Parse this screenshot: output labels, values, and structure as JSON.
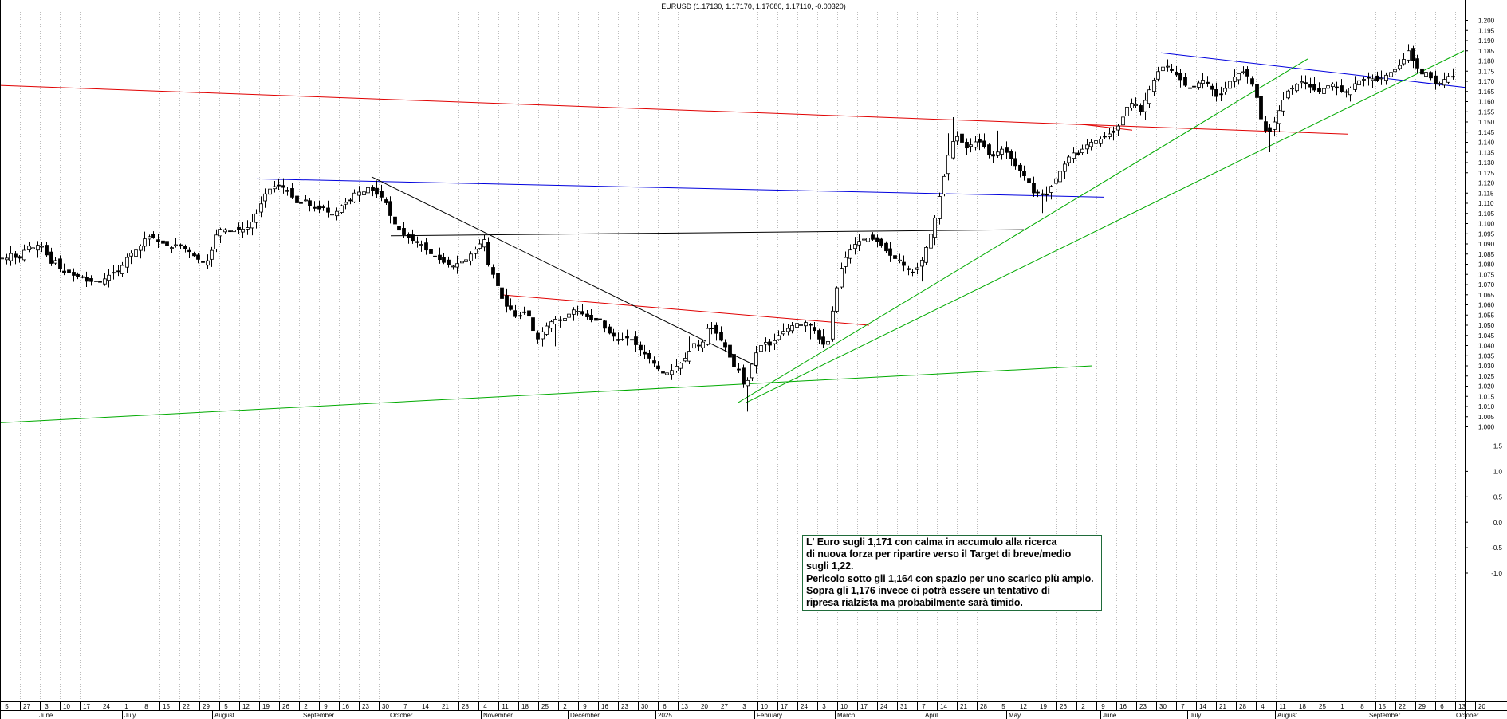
{
  "chart_data": {
    "type": "candlestick",
    "title": "EURUSD (1.17130, 1.17170, 1.17080, 1.17110, -0.00320)",
    "symbol": "EURUSD",
    "last_quote": {
      "open": 1.1713,
      "high": 1.1717,
      "low": 1.1708,
      "close": 1.1711,
      "change": -0.0032
    },
    "price_axis": {
      "min": 1.0,
      "max": 1.2,
      "step": 0.005,
      "tick_labels": [
        "1.000",
        "1.005",
        "1.010",
        "1.015",
        "1.020",
        "1.025",
        "1.030",
        "1.035",
        "1.040",
        "1.045",
        "1.050",
        "1.055",
        "1.060",
        "1.065",
        "1.070",
        "1.075",
        "1.080",
        "1.085",
        "1.090",
        "1.095",
        "1.100",
        "1.105",
        "1.110",
        "1.115",
        "1.120",
        "1.125",
        "1.130",
        "1.135",
        "1.140",
        "1.145",
        "1.150",
        "1.155",
        "1.160",
        "1.165",
        "1.170",
        "1.175",
        "1.180",
        "1.185",
        "1.190",
        "1.195",
        "1.200"
      ]
    },
    "indicator_axis": {
      "min": -1.0,
      "max": 1.5,
      "tick_labels": [
        "1.5",
        "1.0",
        "0.5",
        "0.0",
        "-0.5",
        "-1.0"
      ],
      "tick_values": [
        1.5,
        1.0,
        0.5,
        0.0,
        -0.5,
        -1.0
      ]
    },
    "x_axis": {
      "day_labels": [
        "5",
        "27",
        "3",
        "10",
        "17",
        "24",
        "1",
        "8",
        "15",
        "22",
        "29",
        "5",
        "12",
        "19",
        "26",
        "2",
        "9",
        "16",
        "23",
        "30",
        "7",
        "14",
        "21",
        "28",
        "4",
        "11",
        "18",
        "25",
        "2",
        "9",
        "16",
        "23",
        "30",
        "6",
        "13",
        "20",
        "27",
        "3",
        "10",
        "17",
        "24",
        "3",
        "10",
        "17",
        "24",
        "31",
        "7",
        "14",
        "21",
        "28",
        "5",
        "12",
        "19",
        "26",
        "2",
        "9",
        "16",
        "23",
        "30",
        "7",
        "14",
        "21",
        "28",
        "4",
        "11",
        "18",
        "25",
        "1",
        "8",
        "15",
        "22",
        "29",
        "6",
        "13",
        "20"
      ],
      "month_labels": [
        "June",
        "July",
        "August",
        "September",
        "October",
        "November",
        "December",
        "2025",
        "February",
        "March",
        "April",
        "May",
        "June",
        "July",
        "August",
        "September",
        "October"
      ],
      "month_ticks": [
        46,
        153,
        266,
        377,
        486,
        603,
        712,
        822,
        946,
        1047,
        1157,
        1262,
        1380,
        1489,
        1599,
        1714,
        1823
      ],
      "bars_per_label": 5
    },
    "ohlc_anchors": [
      [
        0,
        1.083
      ],
      [
        8,
        1.083
      ],
      [
        15,
        1.086
      ],
      [
        22,
        1.081
      ],
      [
        28,
        1.086
      ],
      [
        35,
        1.089
      ],
      [
        42,
        1.088
      ],
      [
        49,
        1.09
      ],
      [
        55,
        1.088
      ],
      [
        62,
        1.08
      ],
      [
        70,
        1.082
      ],
      [
        77,
        1.076
      ],
      [
        85,
        1.076
      ],
      [
        94,
        1.074
      ],
      [
        102,
        1.074
      ],
      [
        110,
        1.071
      ],
      [
        118,
        1.072
      ],
      [
        126,
        1.071
      ],
      [
        134,
        1.074
      ],
      [
        142,
        1.076
      ],
      [
        150,
        1.077
      ],
      [
        158,
        1.083
      ],
      [
        166,
        1.086
      ],
      [
        174,
        1.088
      ],
      [
        182,
        1.093
      ],
      [
        190,
        1.094
      ],
      [
        198,
        1.091
      ],
      [
        206,
        1.09
      ],
      [
        214,
        1.088
      ],
      [
        222,
        1.09
      ],
      [
        230,
        1.088
      ],
      [
        238,
        1.086
      ],
      [
        246,
        1.083
      ],
      [
        254,
        1.081
      ],
      [
        262,
        1.082
      ],
      [
        270,
        1.094
      ],
      [
        278,
        1.098
      ],
      [
        286,
        1.096
      ],
      [
        294,
        1.097
      ],
      [
        302,
        1.097
      ],
      [
        310,
        1.098
      ],
      [
        318,
        1.102
      ],
      [
        326,
        1.109
      ],
      [
        334,
        1.116
      ],
      [
        342,
        1.118
      ],
      [
        350,
        1.119
      ],
      [
        358,
        1.117
      ],
      [
        366,
        1.113
      ],
      [
        374,
        1.109
      ],
      [
        382,
        1.112
      ],
      [
        390,
        1.108
      ],
      [
        398,
        1.107
      ],
      [
        406,
        1.108
      ],
      [
        414,
        1.104
      ],
      [
        422,
        1.106
      ],
      [
        430,
        1.11
      ],
      [
        438,
        1.111
      ],
      [
        446,
        1.116
      ],
      [
        454,
        1.115
      ],
      [
        462,
        1.118
      ],
      [
        470,
        1.115
      ],
      [
        478,
        1.113
      ],
      [
        484,
        1.11
      ],
      [
        490,
        1.103
      ],
      [
        496,
        1.099
      ],
      [
        504,
        1.095
      ],
      [
        512,
        1.093
      ],
      [
        520,
        1.091
      ],
      [
        528,
        1.09
      ],
      [
        536,
        1.086
      ],
      [
        544,
        1.084
      ],
      [
        552,
        1.082
      ],
      [
        560,
        1.08
      ],
      [
        568,
        1.079
      ],
      [
        576,
        1.081
      ],
      [
        584,
        1.082
      ],
      [
        592,
        1.086
      ],
      [
        600,
        1.089
      ],
      [
        606,
        1.094
      ],
      [
        612,
        1.08
      ],
      [
        618,
        1.075
      ],
      [
        624,
        1.069
      ],
      [
        632,
        1.06
      ],
      [
        640,
        1.058
      ],
      [
        648,
        1.053
      ],
      [
        656,
        1.057
      ],
      [
        664,
        1.054
      ],
      [
        672,
        1.042
      ],
      [
        680,
        1.047
      ],
      [
        688,
        1.051
      ],
      [
        696,
        1.053
      ],
      [
        704,
        1.052
      ],
      [
        712,
        1.055
      ],
      [
        720,
        1.058
      ],
      [
        728,
        1.056
      ],
      [
        736,
        1.054
      ],
      [
        744,
        1.052
      ],
      [
        752,
        1.053
      ],
      [
        760,
        1.047
      ],
      [
        768,
        1.045
      ],
      [
        776,
        1.042
      ],
      [
        784,
        1.044
      ],
      [
        792,
        1.043
      ],
      [
        800,
        1.039
      ],
      [
        808,
        1.036
      ],
      [
        816,
        1.033
      ],
      [
        824,
        1.029
      ],
      [
        832,
        1.026
      ],
      [
        840,
        1.027
      ],
      [
        848,
        1.03
      ],
      [
        856,
        1.032
      ],
      [
        864,
        1.037
      ],
      [
        870,
        1.041
      ],
      [
        876,
        1.04
      ],
      [
        882,
        1.042
      ],
      [
        888,
        1.05
      ],
      [
        894,
        1.048
      ],
      [
        900,
        1.045
      ],
      [
        906,
        1.041
      ],
      [
        912,
        1.038
      ],
      [
        918,
        1.03
      ],
      [
        926,
        1.028
      ],
      [
        934,
        1.018
      ],
      [
        942,
        1.03
      ],
      [
        950,
        1.038
      ],
      [
        958,
        1.042
      ],
      [
        966,
        1.04
      ],
      [
        974,
        1.044
      ],
      [
        982,
        1.047
      ],
      [
        990,
        1.049
      ],
      [
        998,
        1.051
      ],
      [
        1006,
        1.05
      ],
      [
        1012,
        1.052
      ],
      [
        1018,
        1.049
      ],
      [
        1024,
        1.046
      ],
      [
        1030,
        1.04
      ],
      [
        1038,
        1.042
      ],
      [
        1044,
        1.058
      ],
      [
        1050,
        1.07
      ],
      [
        1056,
        1.08
      ],
      [
        1064,
        1.086
      ],
      [
        1072,
        1.09
      ],
      [
        1080,
        1.092
      ],
      [
        1088,
        1.093
      ],
      [
        1096,
        1.092
      ],
      [
        1104,
        1.09
      ],
      [
        1112,
        1.086
      ],
      [
        1120,
        1.083
      ],
      [
        1128,
        1.082
      ],
      [
        1136,
        1.078
      ],
      [
        1144,
        1.076
      ],
      [
        1152,
        1.079
      ],
      [
        1158,
        1.084
      ],
      [
        1164,
        1.092
      ],
      [
        1170,
        1.098
      ],
      [
        1176,
        1.11
      ],
      [
        1182,
        1.12
      ],
      [
        1188,
        1.132
      ],
      [
        1194,
        1.14
      ],
      [
        1200,
        1.143
      ],
      [
        1206,
        1.14
      ],
      [
        1212,
        1.137
      ],
      [
        1218,
        1.139
      ],
      [
        1226,
        1.141
      ],
      [
        1234,
        1.138
      ],
      [
        1242,
        1.132
      ],
      [
        1250,
        1.135
      ],
      [
        1258,
        1.137
      ],
      [
        1266,
        1.133
      ],
      [
        1274,
        1.128
      ],
      [
        1282,
        1.125
      ],
      [
        1290,
        1.12
      ],
      [
        1298,
        1.113
      ],
      [
        1304,
        1.117
      ],
      [
        1310,
        1.112
      ],
      [
        1316,
        1.117
      ],
      [
        1322,
        1.121
      ],
      [
        1328,
        1.125
      ],
      [
        1336,
        1.13
      ],
      [
        1344,
        1.135
      ],
      [
        1352,
        1.134
      ],
      [
        1360,
        1.138
      ],
      [
        1368,
        1.14
      ],
      [
        1376,
        1.141
      ],
      [
        1382,
        1.142
      ],
      [
        1390,
        1.144
      ],
      [
        1398,
        1.145
      ],
      [
        1406,
        1.151
      ],
      [
        1414,
        1.158
      ],
      [
        1422,
        1.16
      ],
      [
        1430,
        1.155
      ],
      [
        1438,
        1.163
      ],
      [
        1446,
        1.17
      ],
      [
        1454,
        1.176
      ],
      [
        1462,
        1.178
      ],
      [
        1470,
        1.175
      ],
      [
        1478,
        1.172
      ],
      [
        1486,
        1.168
      ],
      [
        1494,
        1.166
      ],
      [
        1502,
        1.169
      ],
      [
        1510,
        1.171
      ],
      [
        1518,
        1.167
      ],
      [
        1526,
        1.162
      ],
      [
        1534,
        1.165
      ],
      [
        1542,
        1.17
      ],
      [
        1550,
        1.173
      ],
      [
        1558,
        1.175
      ],
      [
        1566,
        1.172
      ],
      [
        1574,
        1.165
      ],
      [
        1582,
        1.15
      ],
      [
        1590,
        1.143
      ],
      [
        1598,
        1.15
      ],
      [
        1606,
        1.158
      ],
      [
        1614,
        1.165
      ],
      [
        1622,
        1.167
      ],
      [
        1630,
        1.17
      ],
      [
        1638,
        1.169
      ],
      [
        1646,
        1.166
      ],
      [
        1654,
        1.165
      ],
      [
        1662,
        1.167
      ],
      [
        1670,
        1.169
      ],
      [
        1678,
        1.166
      ],
      [
        1686,
        1.164
      ],
      [
        1694,
        1.167
      ],
      [
        1702,
        1.17
      ],
      [
        1710,
        1.171
      ],
      [
        1718,
        1.172
      ],
      [
        1726,
        1.17
      ],
      [
        1734,
        1.172
      ],
      [
        1742,
        1.174
      ],
      [
        1750,
        1.176
      ],
      [
        1758,
        1.179
      ],
      [
        1766,
        1.185
      ],
      [
        1772,
        1.18
      ],
      [
        1778,
        1.176
      ],
      [
        1784,
        1.173
      ],
      [
        1790,
        1.175
      ],
      [
        1796,
        1.17
      ],
      [
        1802,
        1.168
      ],
      [
        1808,
        1.17
      ],
      [
        1814,
        1.172
      ],
      [
        1820,
        1.173
      ],
      [
        1826,
        1.171
      ]
    ],
    "trendlines": [
      {
        "color": "#e00000",
        "points": [
          [
            0,
            1.168
          ],
          [
            1690,
            1.144
          ]
        ]
      },
      {
        "color": "#e00000",
        "points": [
          [
            628,
            1.065
          ],
          [
            1090,
            1.05
          ]
        ]
      },
      {
        "color": "#e00000",
        "points": [
          [
            1352,
            1.149
          ],
          [
            1420,
            1.146
          ]
        ]
      },
      {
        "color": "#0000dd",
        "points": [
          [
            322,
            1.122
          ],
          [
            1385,
            1.113
          ]
        ]
      },
      {
        "color": "#0000dd",
        "points": [
          [
            1456,
            1.184
          ],
          [
            1837,
            1.167
          ]
        ]
      },
      {
        "color": "#000000",
        "points": [
          [
            490,
            1.094
          ],
          [
            1284,
            1.097
          ]
        ]
      },
      {
        "color": "#000000",
        "points": [
          [
            466,
            1.123
          ],
          [
            948,
            1.03
          ]
        ]
      },
      {
        "color": "#00aa00",
        "points": [
          [
            0,
            1.002
          ],
          [
            1370,
            1.03
          ]
        ]
      },
      {
        "color": "#00aa00",
        "points": [
          [
            926,
            1.012
          ],
          [
            1640,
            1.181
          ]
        ]
      },
      {
        "color": "#00aa00",
        "points": [
          [
            936,
            1.012
          ],
          [
            1836,
            1.185
          ]
        ]
      }
    ],
    "annotation_lines": [
      "L' Euro sugli 1,171 con calma in accumulo alla ricerca",
      "di nuova forza per ripartire verso il Target di breve/medio",
      "sugli 1,22.",
      "Pericolo sotto gli 1,164 con spazio per uno scarico più ampio.",
      "Sopra gli 1,176 invece ci potrà essere un tentativo di",
      "ripresa rialzista ma probabilmente sarà timido."
    ]
  }
}
